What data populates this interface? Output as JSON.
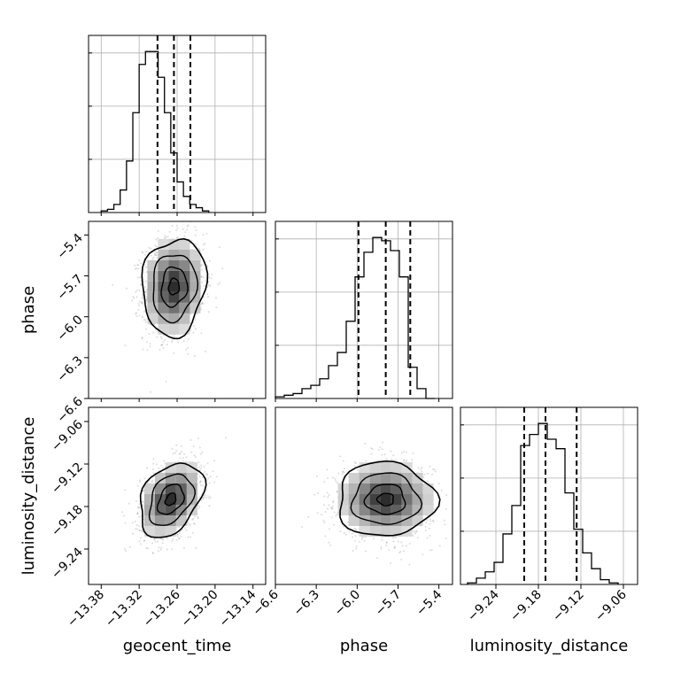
{
  "chart_data": {
    "type": "corner",
    "parameters": [
      {
        "name": "geocent_time",
        "range": [
          -13.4,
          -13.12
        ],
        "ticks": [
          -13.38,
          -13.32,
          -13.26,
          -13.2,
          -13.14
        ],
        "tick_labels": [
          "−13.38",
          "−13.32",
          "−13.26",
          "−13.20",
          "−13.14"
        ],
        "quantiles": [
          -13.291,
          -13.265,
          -13.239
        ],
        "histogram": {
          "bin_start": -13.38,
          "bin_width": 0.01,
          "counts": [
            1,
            2,
            5,
            14,
            32,
            62,
            92,
            100,
            100,
            84,
            62,
            37,
            19,
            10,
            5,
            3,
            1
          ]
        }
      },
      {
        "name": "phase",
        "range": [
          -6.6,
          -5.3
        ],
        "ticks": [
          -6.6,
          -6.3,
          -6.0,
          -5.7,
          -5.4
        ],
        "tick_labels": [
          "−6.6",
          "−6.3",
          "−6.0",
          "−5.7",
          "−5.4"
        ],
        "quantiles": [
          -5.99,
          -5.79,
          -5.61
        ],
        "histogram": {
          "bin_start": -6.6,
          "bin_width": 0.065,
          "counts": [
            1,
            2,
            3,
            6,
            8,
            12,
            20,
            28,
            47,
            74,
            89,
            98,
            96,
            90,
            74,
            19,
            6,
            0
          ]
        }
      },
      {
        "name": "luminosity_distance",
        "range": [
          -9.29,
          -9.04
        ],
        "ticks": [
          -9.24,
          -9.18,
          -9.12,
          -9.06
        ],
        "tick_labels": [
          "−9.24",
          "−9.18",
          "−9.12",
          "−9.06"
        ],
        "quantiles": [
          -9.2,
          -9.17,
          -9.126
        ],
        "histogram": {
          "bin_start": -9.28,
          "bin_width": 0.0125,
          "counts": [
            1,
            4,
            8,
            14,
            32,
            50,
            88,
            95,
            102,
            92,
            86,
            58,
            35,
            20,
            10,
            3,
            1
          ]
        }
      }
    ],
    "pairs": [
      {
        "x": "geocent_time",
        "y": "phase",
        "center": [
          -13.265,
          -5.78
        ],
        "sigma": [
          0.024,
          0.17
        ],
        "rho": 0.1
      },
      {
        "x": "geocent_time",
        "y": "luminosity_distance",
        "center": [
          -13.27,
          -9.17
        ],
        "sigma": [
          0.024,
          0.025
        ],
        "rho": 0.35
      },
      {
        "x": "phase",
        "y": "luminosity_distance",
        "center": [
          -5.79,
          -9.17
        ],
        "sigma": [
          0.17,
          0.025
        ],
        "rho": 0.0
      }
    ],
    "grid": true
  }
}
